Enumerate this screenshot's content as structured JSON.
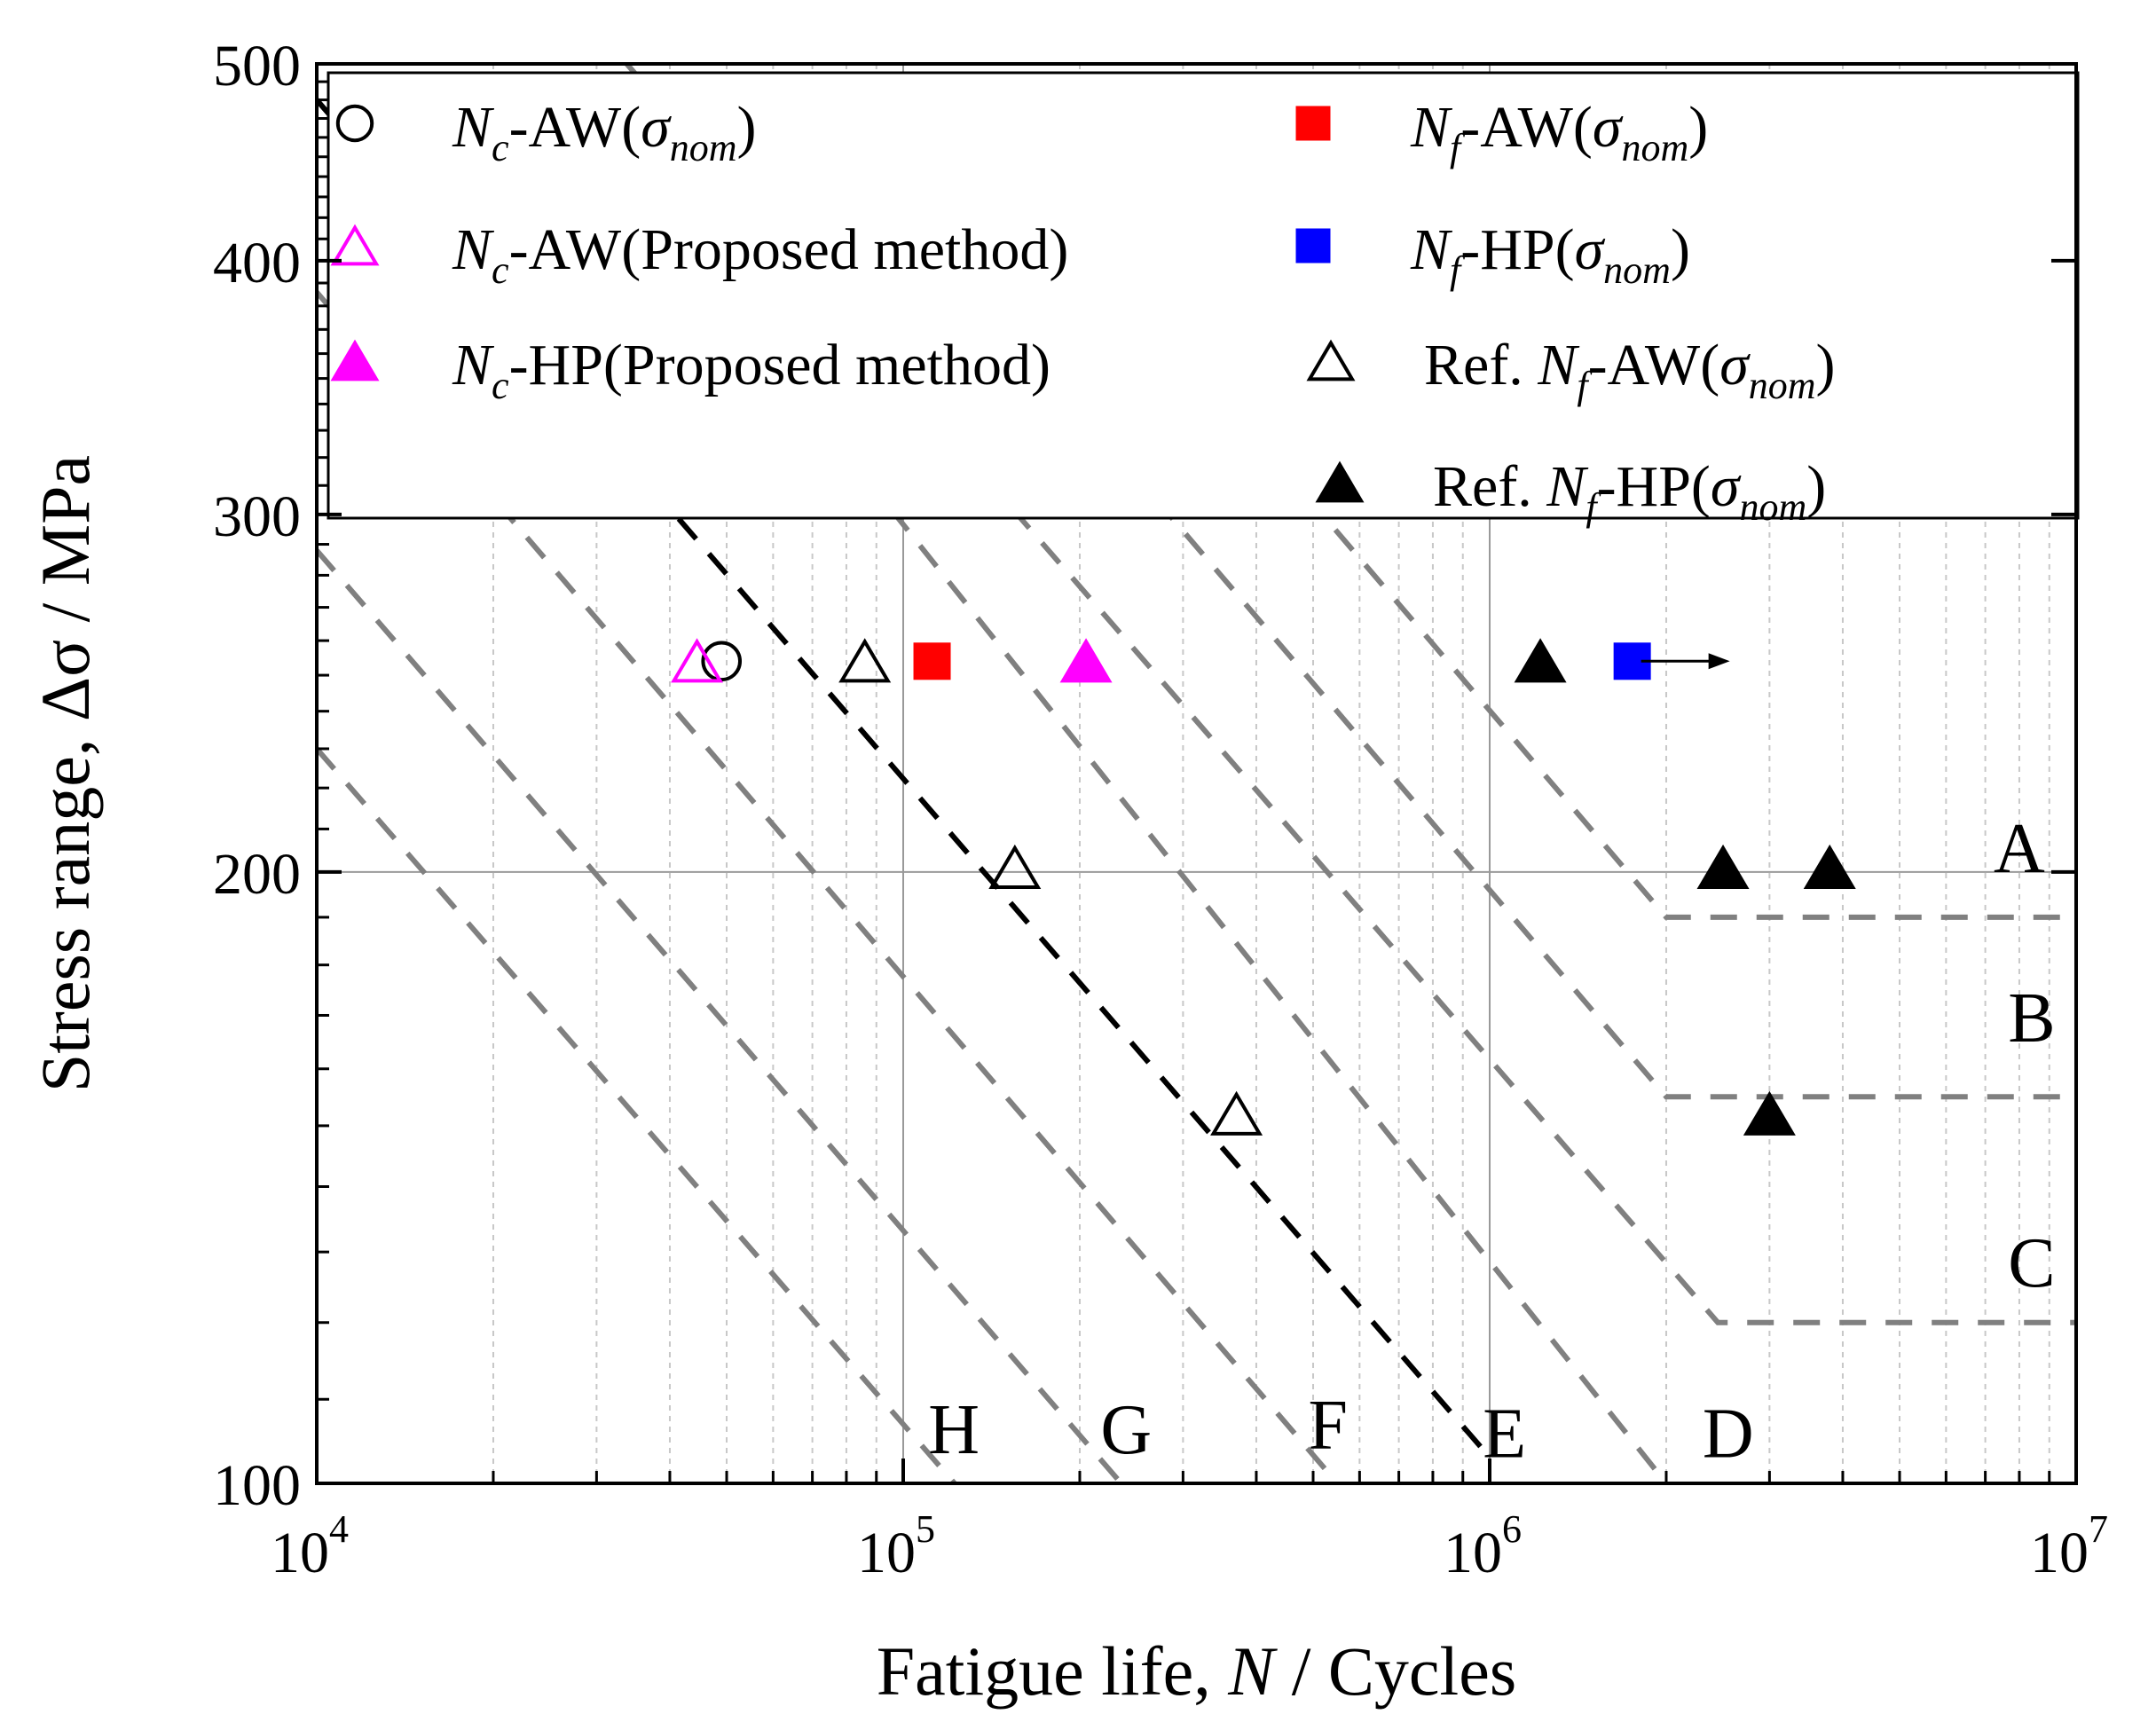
{
  "chart_data": {
    "type": "scatter",
    "x_scale": "log",
    "y_scale": "log",
    "xlim": [
      10000,
      10000000
    ],
    "ylim": [
      100,
      500
    ],
    "x_ticks": [
      {
        "value": 10000,
        "base": "10",
        "exp": "4"
      },
      {
        "value": 100000,
        "base": "10",
        "exp": "5"
      },
      {
        "value": 1000000,
        "base": "10",
        "exp": "6"
      },
      {
        "value": 10000000,
        "base": "10",
        "exp": "7"
      }
    ],
    "y_ticks": [
      {
        "value": 100,
        "label": "100"
      },
      {
        "value": 200,
        "label": "200"
      },
      {
        "value": 300,
        "label": "300"
      },
      {
        "value": 400,
        "label": "400"
      },
      {
        "value": 500,
        "label": "500"
      }
    ],
    "xlabel": {
      "pre": "Fatigue life, ",
      "var": "N",
      "post": " / Cycles"
    },
    "ylabel": "Stress range, Δσ / MPa",
    "legend": [
      {
        "marker": "circle-open",
        "color": "#000000",
        "N": "N",
        "sub": "c",
        "mid": "-AW(",
        "sigma": "σ",
        "sigma_sub": "nom",
        "end": ")",
        "prefix": ""
      },
      {
        "marker": "triangle-open",
        "color": "#ff00ff",
        "N": "N",
        "sub": "c",
        "mid": "-AW(Proposed method)",
        "sigma": "",
        "sigma_sub": "",
        "end": "",
        "prefix": ""
      },
      {
        "marker": "triangle-filled",
        "color": "#ff00ff",
        "N": "N",
        "sub": "c",
        "mid": "-HP(Proposed method)",
        "sigma": "",
        "sigma_sub": "",
        "end": "",
        "prefix": ""
      },
      {
        "marker": "square-filled",
        "color": "#ff0000",
        "N": "N",
        "sub": "f",
        "mid": "-AW(",
        "sigma": "σ",
        "sigma_sub": "nom",
        "end": ")",
        "prefix": ""
      },
      {
        "marker": "square-filled",
        "color": "#0000ff",
        "N": "N",
        "sub": "f",
        "mid": "-HP(",
        "sigma": "σ",
        "sigma_sub": "nom",
        "end": ")",
        "prefix": ""
      },
      {
        "marker": "triangle-open",
        "color": "#000000",
        "N": "N",
        "sub": "f",
        "mid": "-AW(",
        "sigma": "σ",
        "sigma_sub": "nom",
        "end": ")",
        "prefix": "Ref. "
      },
      {
        "marker": "triangle-filled",
        "color": "#000000",
        "N": "N",
        "sub": "f",
        "mid": "-HP(",
        "sigma": "σ",
        "sigma_sub": "nom",
        "end": ")",
        "prefix": "Ref. "
      }
    ],
    "series": [
      {
        "name": "Nc-AW(σnom)",
        "marker": "circle-open",
        "color": "#000000",
        "points": [
          [
            49000,
            254
          ]
        ]
      },
      {
        "name": "Nc-AW(Proposed method)",
        "marker": "triangle-open",
        "color": "#ff00ff",
        "points": [
          [
            44500,
            254
          ]
        ]
      },
      {
        "name": "Nc-HP(Proposed method)",
        "marker": "triangle-filled",
        "color": "#ff00ff",
        "points": [
          [
            205000,
            254
          ]
        ]
      },
      {
        "name": "Nf-AW(σnom)",
        "marker": "square-filled",
        "color": "#ff0000",
        "points": [
          [
            112000,
            254
          ]
        ]
      },
      {
        "name": "Nf-HP(σnom)",
        "marker": "square-filled",
        "color": "#0000ff",
        "points": [
          [
            1750000,
            254
          ]
        ],
        "runout": true
      },
      {
        "name": "Ref. Nf-AW(σnom)",
        "marker": "triangle-open",
        "color": "#000000",
        "points": [
          [
            86000,
            254
          ],
          [
            155000,
            201
          ],
          [
            370000,
            152
          ]
        ]
      },
      {
        "name": "Ref. Nf-HP(σnom)",
        "marker": "triangle-filled",
        "color": "#000000",
        "points": [
          [
            1220000,
            254
          ],
          [
            2500000,
            201
          ],
          [
            3800000,
            201
          ],
          [
            3000000,
            152
          ]
        ]
      }
    ],
    "sn_curves": [
      {
        "label": "A",
        "color": "#808080",
        "points": [
          [
            10000,
            1140
          ],
          [
            2000000,
            190
          ],
          [
            10000000,
            190
          ]
        ]
      },
      {
        "label": "B",
        "color": "#808080",
        "points": [
          [
            10000,
            930
          ],
          [
            2000000,
            155
          ],
          [
            10000000,
            155
          ]
        ]
      },
      {
        "label": "C",
        "color": "#808080",
        "points": [
          [
            10000,
            750
          ],
          [
            2450000,
            120
          ],
          [
            10000000,
            120
          ]
        ]
      },
      {
        "label": "D",
        "color": "#808080",
        "points": [
          [
            10000,
            684
          ],
          [
            2000000,
            100
          ]
        ]
      },
      {
        "label": "E",
        "color": "#000000",
        "points": [
          [
            10000,
            480
          ],
          [
            1000000,
            103
          ]
        ]
      },
      {
        "label": "F",
        "color": "#808080",
        "points": [
          [
            10000,
            386
          ],
          [
            550000,
            100
          ]
        ]
      },
      {
        "label": "G",
        "color": "#808080",
        "points": [
          [
            10000,
            288
          ],
          [
            250000,
            98
          ]
        ]
      },
      {
        "label": "H",
        "color": "#808080",
        "points": [
          [
            10000,
            230
          ],
          [
            130000,
            98
          ]
        ]
      }
    ],
    "curve_labels": [
      {
        "text": "A",
        "x": 8000000,
        "y": 200
      },
      {
        "text": "B",
        "x": 8400000,
        "y": 165
      },
      {
        "text": "C",
        "x": 8400000,
        "y": 125
      },
      {
        "text": "D",
        "x": 2550000,
        "y": 103
      },
      {
        "text": "E",
        "x": 1060000,
        "y": 103
      },
      {
        "text": "F",
        "x": 530000,
        "y": 104
      },
      {
        "text": "G",
        "x": 240000,
        "y": 103.5
      },
      {
        "text": "H",
        "x": 122000,
        "y": 103.5
      }
    ],
    "grid": true,
    "legend_position": "top"
  }
}
